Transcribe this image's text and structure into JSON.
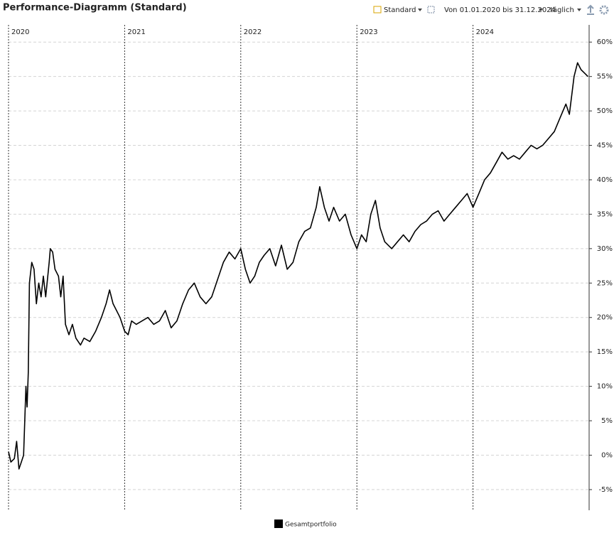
{
  "header": {
    "title": "Performance-Diagramm (Standard)",
    "view": "Standard",
    "range": "Von 01.01.2020 bis 31.12.2024",
    "interval": "täglich"
  },
  "chart_data": {
    "type": "line",
    "x": [
      2020.0,
      2020.02,
      2020.05,
      2020.07,
      2020.09,
      2020.11,
      2020.13,
      2020.15,
      2020.16,
      2020.17,
      2020.18,
      2020.2,
      2020.22,
      2020.24,
      2020.26,
      2020.28,
      2020.3,
      2020.32,
      2020.35,
      2020.36,
      2020.38,
      2020.4,
      2020.43,
      2020.45,
      2020.47,
      2020.49,
      2020.52,
      2020.55,
      2020.58,
      2020.62,
      2020.65,
      2020.7,
      2020.75,
      2020.8,
      2020.84,
      2020.87,
      2020.9,
      2020.93,
      2020.96,
      2021.0,
      2021.03,
      2021.06,
      2021.1,
      2021.15,
      2021.2,
      2021.25,
      2021.3,
      2021.35,
      2021.4,
      2021.45,
      2021.5,
      2021.55,
      2021.6,
      2021.65,
      2021.7,
      2021.75,
      2021.8,
      2021.85,
      2021.9,
      2021.95,
      2022.0,
      2022.04,
      2022.08,
      2022.12,
      2022.16,
      2022.2,
      2022.25,
      2022.3,
      2022.35,
      2022.4,
      2022.45,
      2022.5,
      2022.55,
      2022.6,
      2022.65,
      2022.68,
      2022.72,
      2022.76,
      2022.8,
      2022.85,
      2022.9,
      2022.95,
      2023.0,
      2023.04,
      2023.08,
      2023.12,
      2023.16,
      2023.2,
      2023.24,
      2023.3,
      2023.35,
      2023.4,
      2023.45,
      2023.5,
      2023.55,
      2023.6,
      2023.65,
      2023.7,
      2023.75,
      2023.8,
      2023.85,
      2023.9,
      2023.95,
      2024.0,
      2024.05,
      2024.1,
      2024.15,
      2024.2,
      2024.25,
      2024.3,
      2024.35,
      2024.4,
      2024.45,
      2024.5,
      2024.55,
      2024.6,
      2024.65,
      2024.7,
      2024.75,
      2024.8,
      2024.83,
      2024.87,
      2024.9,
      2024.93,
      2024.96,
      2024.99
    ],
    "series": [
      {
        "name": "Gesamtportfolio",
        "color": "#000000",
        "values": [
          0.5,
          -1,
          -0.5,
          2,
          -2,
          -1,
          0,
          10,
          7,
          12,
          25,
          28,
          27,
          22,
          25,
          23,
          26,
          23,
          28,
          30,
          29.5,
          27,
          26,
          23,
          26,
          19,
          17.5,
          19,
          17,
          16,
          17,
          16.5,
          18,
          20,
          22,
          24,
          22,
          21,
          20,
          18,
          17.5,
          19.5,
          19,
          19.5,
          20,
          19,
          19.5,
          21,
          18.5,
          19.5,
          22,
          24,
          25,
          23,
          22,
          23,
          25.5,
          28,
          29.5,
          28.5,
          30,
          27,
          25,
          26,
          28,
          29,
          30,
          27.5,
          30.5,
          27,
          28,
          31,
          32.5,
          33,
          36,
          39,
          36,
          34,
          36,
          34,
          35,
          32,
          30,
          32,
          31,
          35,
          37,
          33,
          31,
          30,
          31,
          32,
          31,
          32.5,
          33.5,
          34,
          35,
          35.5,
          34,
          35,
          36,
          37,
          38,
          36,
          38,
          40,
          41,
          42.5,
          44,
          43,
          43.5,
          43,
          44,
          45,
          44.5,
          45,
          46,
          47,
          49,
          51,
          49.5,
          55,
          57,
          56,
          55.5,
          55
        ]
      }
    ],
    "xlim": [
      2020,
      2025
    ],
    "xticks": [
      2020,
      2021,
      2022,
      2023,
      2024
    ],
    "ylim": [
      -8,
      62.5
    ],
    "yticks": [
      {
        "value": -5,
        "label": "-5%"
      },
      {
        "value": 0,
        "label": "0%"
      },
      {
        "value": 5,
        "label": "5%"
      },
      {
        "value": 10,
        "label": "10%"
      },
      {
        "value": 15,
        "label": "15%"
      },
      {
        "value": 20,
        "label": "20%"
      },
      {
        "value": 25,
        "label": "25%"
      },
      {
        "value": 30,
        "label": "30%"
      },
      {
        "value": 35,
        "label": "35%"
      },
      {
        "value": 40,
        "label": "40%"
      },
      {
        "value": 45,
        "label": "45%"
      },
      {
        "value": 50,
        "label": "50%"
      },
      {
        "value": 55,
        "label": "55%"
      },
      {
        "value": 60,
        "label": "60%"
      }
    ],
    "grid": true
  }
}
